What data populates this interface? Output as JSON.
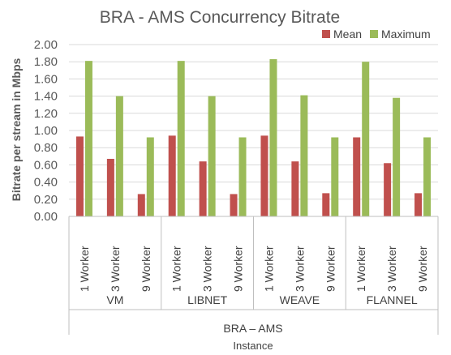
{
  "chart_data": {
    "type": "bar",
    "title": "BRA - AMS Concurrency Bitrate",
    "ylabel": "Bitrate per stream in Mbps",
    "xlabel": "Instance",
    "ylim": [
      0,
      2.0
    ],
    "yticks": [
      "0.00",
      "0.20",
      "0.40",
      "0.60",
      "0.80",
      "1.00",
      "1.20",
      "1.40",
      "1.60",
      "1.80",
      "2.00"
    ],
    "grid": true,
    "legend_position": "top-right",
    "super_group": "BRA – AMS",
    "groups": [
      "VM",
      "LIBNET",
      "WEAVE",
      "FLANNEL"
    ],
    "categories": [
      "1 Worker",
      "3 Worker",
      "9 Worker"
    ],
    "series": [
      {
        "name": "Mean",
        "color": "#c0504d",
        "values": [
          [
            0.93,
            0.67,
            0.26
          ],
          [
            0.94,
            0.64,
            0.26
          ],
          [
            0.94,
            0.64,
            0.27
          ],
          [
            0.92,
            0.62,
            0.27
          ]
        ]
      },
      {
        "name": "Maximum",
        "color": "#9bbb59",
        "values": [
          [
            1.81,
            1.4,
            0.92
          ],
          [
            1.81,
            1.4,
            0.92
          ],
          [
            1.83,
            1.41,
            0.92
          ],
          [
            1.8,
            1.38,
            0.92
          ]
        ]
      }
    ]
  }
}
